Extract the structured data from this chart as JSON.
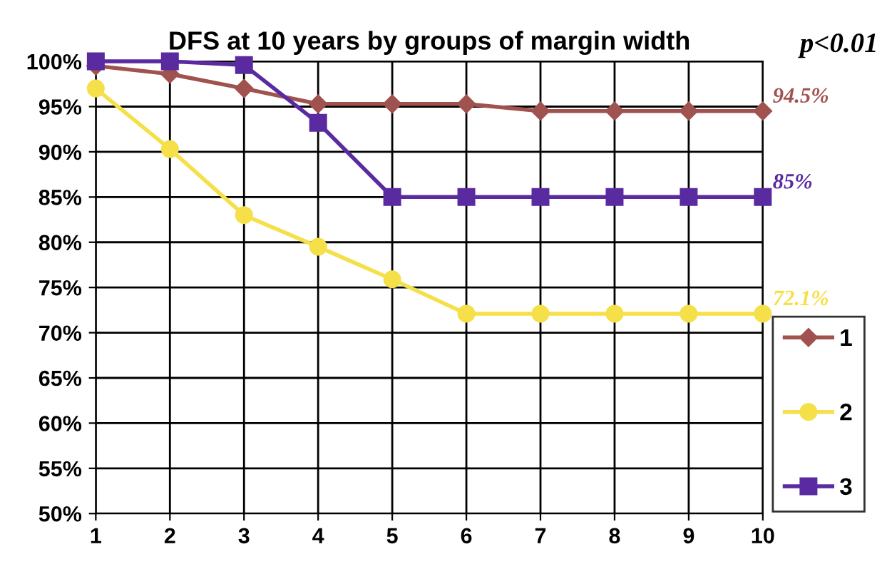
{
  "chart_data": {
    "type": "line",
    "title": "DFS at 10 years by groups of margin width",
    "x": [
      1,
      2,
      3,
      4,
      5,
      6,
      7,
      8,
      9,
      10
    ],
    "series": [
      {
        "name": "1",
        "color": "#a0524f",
        "marker": "diamond",
        "values": [
          99.5,
          98.6,
          97.0,
          95.3,
          95.3,
          95.3,
          94.5,
          94.5,
          94.5,
          94.5
        ]
      },
      {
        "name": "2",
        "color": "#f5e04a",
        "marker": "circle",
        "values": [
          97.0,
          90.3,
          83.0,
          79.5,
          75.9,
          72.1,
          72.1,
          72.1,
          72.1,
          72.1
        ]
      },
      {
        "name": "3",
        "color": "#5a2aa0",
        "marker": "square",
        "values": [
          100,
          100,
          99.6,
          93.2,
          85,
          85,
          85,
          85,
          85,
          85
        ]
      }
    ],
    "xlim": [
      1,
      10
    ],
    "xticks": [
      1,
      2,
      3,
      4,
      5,
      6,
      7,
      8,
      9,
      10
    ],
    "ylim": [
      50,
      100
    ],
    "yticks": [
      {
        "value": 50,
        "label": "50%"
      },
      {
        "value": 55,
        "label": "55%"
      },
      {
        "value": 60,
        "label": "60%"
      },
      {
        "value": 65,
        "label": "65%"
      },
      {
        "value": 70,
        "label": "70%"
      },
      {
        "value": 75,
        "label": "75%"
      },
      {
        "value": 80,
        "label": "80%"
      },
      {
        "value": 85,
        "label": "85%"
      },
      {
        "value": 90,
        "label": "90%"
      },
      {
        "value": 95,
        "label": "95%"
      },
      {
        "value": 100,
        "label": "100%"
      }
    ],
    "grid": true,
    "legend": "right",
    "annotations": [
      "94.5%",
      "72.1%",
      "85%",
      "p<0.01"
    ]
  }
}
